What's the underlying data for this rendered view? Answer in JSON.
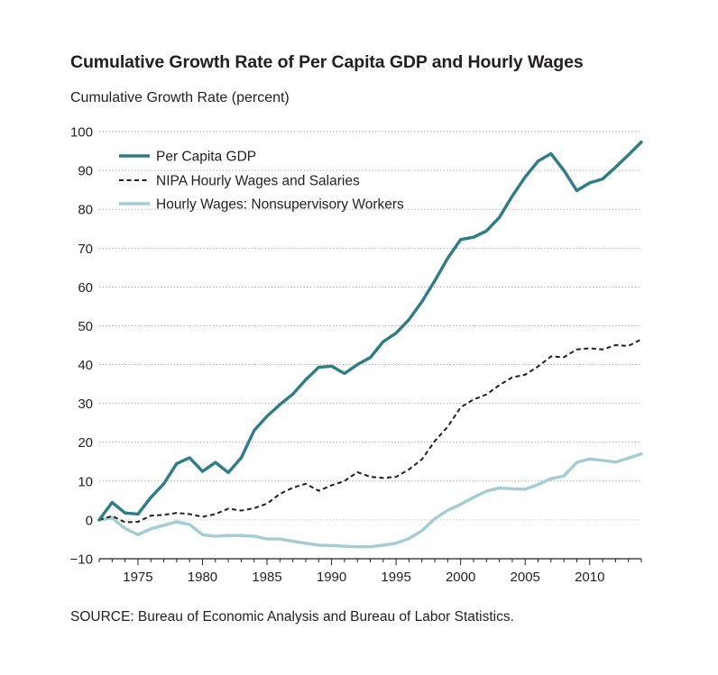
{
  "chart_data": {
    "type": "line",
    "title": "Cumulative Growth Rate of Per Capita GDP and Hourly Wages",
    "ylabel": "Cumulative Growth Rate (percent)",
    "xlabel": "",
    "xlim": [
      1972,
      2014
    ],
    "ylim": [
      -10,
      100
    ],
    "yticks": [
      -10,
      0,
      10,
      20,
      30,
      40,
      50,
      60,
      70,
      80,
      90,
      100
    ],
    "ytick_labels": [
      "−10",
      "0",
      "10",
      "20",
      "30",
      "40",
      "50",
      "60",
      "70",
      "80",
      "90",
      "100"
    ],
    "xticks": [
      1975,
      1980,
      1985,
      1990,
      1995,
      2000,
      2005,
      2010
    ],
    "xtick_labels": [
      "1975",
      "1980",
      "1985",
      "1990",
      "1995",
      "2000",
      "2005",
      "2010"
    ],
    "grid": "horizontal dotted",
    "legend_position": "top-left",
    "x": [
      1972,
      1973,
      1974,
      1975,
      1976,
      1977,
      1978,
      1979,
      1980,
      1981,
      1982,
      1983,
      1984,
      1985,
      1986,
      1987,
      1988,
      1989,
      1990,
      1991,
      1992,
      1993,
      1994,
      1995,
      1996,
      1997,
      1998,
      1999,
      2000,
      2001,
      2002,
      2003,
      2004,
      2005,
      2006,
      2007,
      2008,
      2009,
      2010,
      2011,
      2012,
      2013,
      2014
    ],
    "series": [
      {
        "name": "Per Capita GDP",
        "color": "#2e7d86",
        "style": "solid",
        "values": [
          0,
          4.5,
          1.8,
          1.5,
          5.8,
          9.3,
          14.5,
          16.0,
          12.5,
          14.8,
          12.2,
          16.0,
          23.0,
          26.7,
          29.7,
          32.4,
          36.1,
          39.3,
          39.6,
          37.7,
          40.0,
          41.8,
          45.9,
          48.1,
          51.6,
          56.2,
          61.6,
          67.4,
          72.2,
          72.8,
          74.4,
          77.9,
          83.4,
          88.3,
          92.4,
          94.3,
          90.0,
          84.8,
          86.8,
          87.8,
          90.8,
          94.0,
          97.3
        ]
      },
      {
        "name": "NIPA Hourly Wages and Salaries",
        "color": "#231f20",
        "style": "dashed",
        "values": [
          0,
          1.0,
          -0.6,
          -0.5,
          1.1,
          1.3,
          1.8,
          1.5,
          0.8,
          1.5,
          2.9,
          2.4,
          3.0,
          4.2,
          6.7,
          8.3,
          9.3,
          7.5,
          8.9,
          10.0,
          12.3,
          11.1,
          10.8,
          11.1,
          13.0,
          15.6,
          20.3,
          24.0,
          29.0,
          31.0,
          32.3,
          34.7,
          36.7,
          37.4,
          39.5,
          42.1,
          41.9,
          43.9,
          44.2,
          43.9,
          45.0,
          44.8,
          46.5
        ]
      },
      {
        "name": "Hourly Wages: Nonsupervisory Workers",
        "color": "#a3cdd2",
        "style": "solid",
        "values": [
          0,
          0.5,
          -2.2,
          -3.8,
          -2.3,
          -1.4,
          -0.5,
          -1.2,
          -3.8,
          -4.2,
          -4.0,
          -4.0,
          -4.2,
          -4.9,
          -4.9,
          -5.5,
          -6.0,
          -6.5,
          -6.6,
          -6.8,
          -6.9,
          -6.9,
          -6.5,
          -6.0,
          -4.8,
          -2.8,
          0.3,
          2.5,
          4.0,
          5.8,
          7.4,
          8.2,
          8.0,
          7.9,
          9.1,
          10.6,
          11.3,
          14.8,
          15.7,
          15.3,
          14.9,
          15.9,
          17.0
        ]
      }
    ]
  },
  "header": {
    "title": "Cumulative Growth Rate of Per Capita GDP and Hourly Wages",
    "ylabel": "Cumulative Growth Rate (percent)"
  },
  "footer": {
    "source": "SOURCE: Bureau of Economic Analysis and Bureau of Labor Statistics."
  }
}
